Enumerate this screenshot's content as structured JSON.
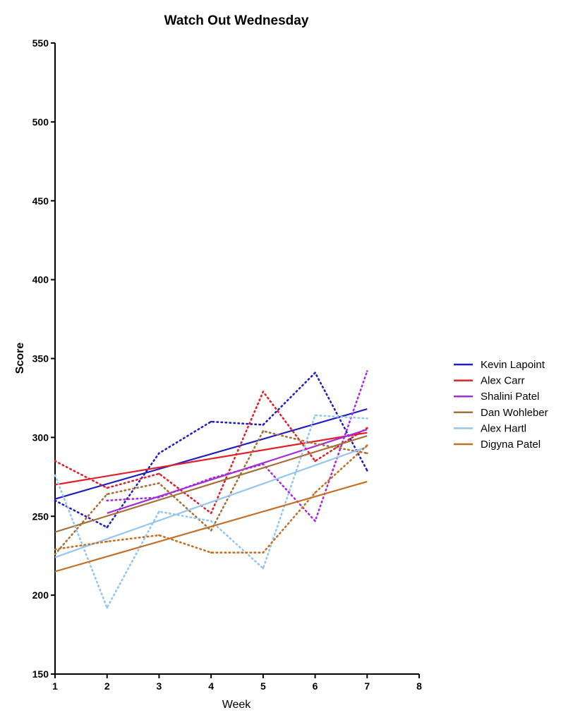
{
  "chart_data": {
    "type": "line",
    "title": "Watch Out Wednesday",
    "xlabel": "Week",
    "ylabel": "Score",
    "xlim": [
      1,
      8
    ],
    "ylim": [
      150,
      550
    ],
    "xticks": [
      1,
      2,
      3,
      4,
      5,
      6,
      7,
      8
    ],
    "yticks": [
      150,
      200,
      250,
      300,
      350,
      400,
      450,
      500,
      550
    ],
    "grid": false,
    "legend_position": "right",
    "series": [
      {
        "name": "Kevin Lapoint",
        "color": "#1f1fbf",
        "x": [
          1,
          2,
          3,
          4,
          5,
          6,
          7
        ],
        "values": [
          260,
          243,
          290,
          310,
          308,
          341,
          279
        ],
        "trend": {
          "x": [
            1,
            7
          ],
          "y": [
            261,
            318
          ]
        }
      },
      {
        "name": "Alex Carr",
        "color": "#e0202a",
        "x": [
          1,
          2,
          3,
          4,
          5,
          6,
          7
        ],
        "values": [
          285,
          268,
          277,
          252,
          329,
          285,
          306
        ],
        "trend": {
          "x": [
            1,
            7
          ],
          "y": [
            270,
            303
          ]
        }
      },
      {
        "name": "Shalini Patel",
        "color": "#a22fd6",
        "x": [
          2,
          3,
          4,
          5,
          6,
          7
        ],
        "values": [
          260,
          262,
          274,
          283,
          247,
          342
        ],
        "trend": {
          "x": [
            2,
            7
          ],
          "y": [
            252,
            305
          ]
        }
      },
      {
        "name": "Dan Wohleber",
        "color": "#a5703a",
        "x": [
          1,
          2,
          3,
          4,
          5,
          6,
          7
        ],
        "values": [
          226,
          264,
          271,
          241,
          304,
          296,
          290
        ],
        "trend": {
          "x": [
            1,
            7
          ],
          "y": [
            240,
            301
          ]
        }
      },
      {
        "name": "Alex Hartl",
        "color": "#96c5ee",
        "x": [
          1,
          2,
          3,
          4,
          5,
          6,
          7
        ],
        "values": [
          276,
          192,
          253,
          247,
          217,
          314,
          312
        ],
        "trend": {
          "x": [
            1,
            7
          ],
          "y": [
            224,
            294
          ]
        }
      },
      {
        "name": "Digyna Patel",
        "color": "#c0712a",
        "x": [
          1,
          2,
          3,
          4,
          5,
          6,
          7
        ],
        "values": [
          229,
          234,
          238,
          227,
          227,
          265,
          295
        ],
        "trend": {
          "x": [
            1,
            7
          ],
          "y": [
            215,
            272
          ]
        }
      }
    ]
  }
}
